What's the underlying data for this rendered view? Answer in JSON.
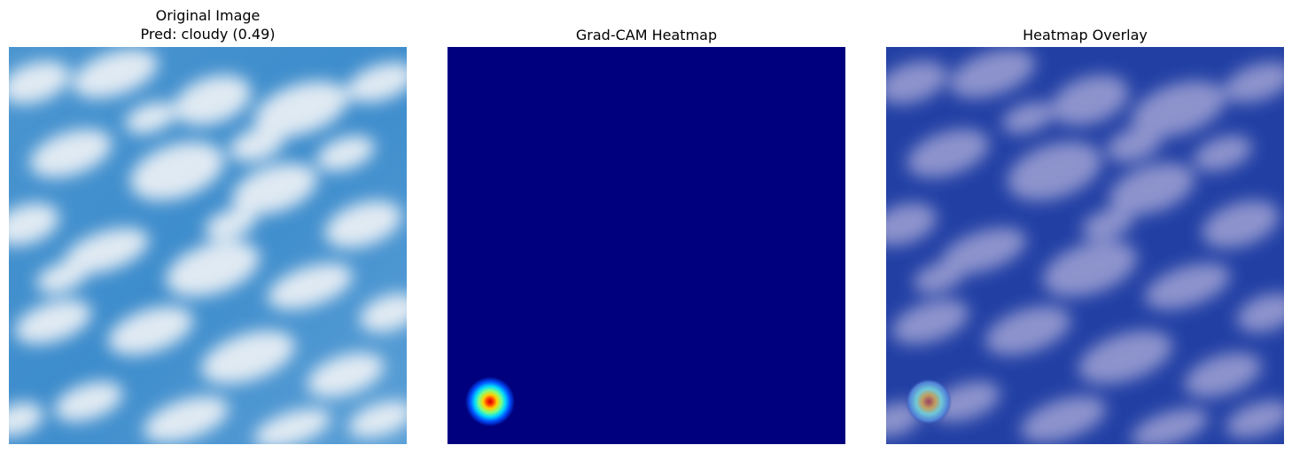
{
  "panels": [
    {
      "title_line1": "Original Image",
      "title_line2": "Pred: cloudy (0.49)"
    },
    {
      "title_line1": "Grad-CAM Heatmap"
    },
    {
      "title_line1": "Heatmap Overlay"
    }
  ],
  "colors": {
    "sky_blue": "#3f8fcf",
    "cloud_white": "#e8eef4",
    "heatmap_background": "#00007f",
    "hotspot_center": "#d10000",
    "overlay_tint": "#2440a8"
  }
}
